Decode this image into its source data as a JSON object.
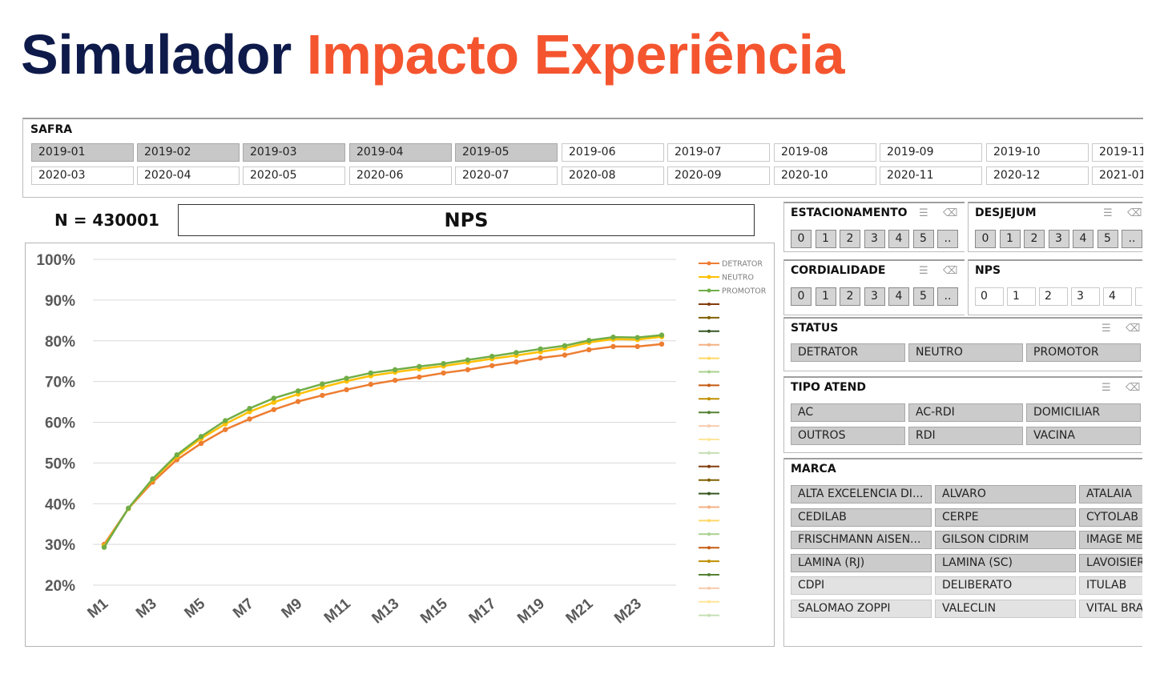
{
  "title": {
    "part1": "Simulador",
    "part2": "Impacto Experiência"
  },
  "safra": {
    "label": "SAFRA",
    "row1": [
      "2019-01",
      "2019-02",
      "2019-03",
      "2019-04",
      "2019-05",
      "2019-06",
      "2019-07",
      "2019-08",
      "2019-09",
      "2019-10",
      "2019-11"
    ],
    "row2": [
      "2020-03",
      "2020-04",
      "2020-05",
      "2020-06",
      "2020-07",
      "2020-08",
      "2020-09",
      "2020-10",
      "2020-11",
      "2020-12",
      "2021-01"
    ],
    "selected_row1_count": 5
  },
  "n_label": "N = 430001",
  "chart_title": "NPS",
  "panels": {
    "estacionamento": {
      "label": "ESTACIONAMENTO",
      "values": [
        "0",
        "1",
        "2",
        "3",
        "4",
        "5",
        ".."
      ]
    },
    "desjejum": {
      "label": "DESJEJUM",
      "values": [
        "0",
        "1",
        "2",
        "3",
        "4",
        "5",
        ".."
      ]
    },
    "cordialidade": {
      "label": "CORDIALIDADE",
      "values": [
        "0",
        "1",
        "2",
        "3",
        "4",
        "5",
        ".."
      ]
    },
    "nps": {
      "label": "NPS",
      "values": [
        "0",
        "1",
        "2",
        "3",
        "4"
      ]
    },
    "status": {
      "label": "STATUS",
      "values": [
        "DETRATOR",
        "NEUTRO",
        "PROMOTOR"
      ]
    },
    "tipo_atend": {
      "label": "TIPO ATEND",
      "values": [
        "AC",
        "AC-RDI",
        "DOMICILIAR",
        "OUTROS",
        "RDI",
        "VACINA"
      ]
    },
    "marca": {
      "label": "MARCA",
      "values": [
        "ALTA EXCELENCIA DI...",
        "ALVARO",
        "ATALAIA",
        "CEDILAB",
        "CERPE",
        "CYTOLAB",
        "FRISCHMANN AISEN...",
        "GILSON CIDRIM",
        "IMAGE MEI",
        "LAMINA (RJ)",
        "LAMINA (SC)",
        "LAVOISIER",
        "CDPI",
        "DELIBERATO",
        "ITULAB",
        "SALOMAO ZOPPI",
        "VALECLIN",
        "VITAL BRA"
      ],
      "light_from_row": 4
    }
  },
  "colors": {
    "detrator": "#ed7d31",
    "neutro": "#ffc000",
    "promotor": "#70ad47",
    "title_dark": "#0e1a4a",
    "title_accent": "#f4552f"
  },
  "chart_data": {
    "type": "line",
    "title": "NPS",
    "xlabel": "",
    "ylabel": "",
    "x": [
      "M1",
      "M2",
      "M3",
      "M4",
      "M5",
      "M6",
      "M7",
      "M8",
      "M9",
      "M10",
      "M11",
      "M12",
      "M13",
      "M14",
      "M15",
      "M16",
      "M17",
      "M18",
      "M19",
      "M20",
      "M21",
      "M22",
      "M23",
      "M24"
    ],
    "x_tick_labels": [
      "M1",
      "M3",
      "M5",
      "M7",
      "M9",
      "M11",
      "M13",
      "M15",
      "M17",
      "M19",
      "M21",
      "M23"
    ],
    "ylim": [
      20,
      100
    ],
    "y_ticks": [
      "20%",
      "30%",
      "40%",
      "50%",
      "60%",
      "70%",
      "80%",
      "90%",
      "100%"
    ],
    "series": [
      {
        "name": "DETRATOR",
        "color": "#ed7d31",
        "values": [
          30.0,
          38.8,
          45.3,
          50.8,
          54.8,
          58.2,
          60.8,
          63.1,
          65.1,
          66.6,
          68.0,
          69.3,
          70.3,
          71.1,
          72.1,
          72.9,
          73.9,
          74.8,
          75.8,
          76.5,
          77.8,
          78.6,
          78.6,
          79.2
        ]
      },
      {
        "name": "NEUTRO",
        "color": "#ffc000",
        "values": [
          29.6,
          38.8,
          45.9,
          51.6,
          56.0,
          59.6,
          62.6,
          64.9,
          66.9,
          68.6,
          70.1,
          71.4,
          72.3,
          73.1,
          73.8,
          74.7,
          75.6,
          76.4,
          77.3,
          78.2,
          79.6,
          80.4,
          80.3,
          81.0
        ]
      },
      {
        "name": "PROMOTOR",
        "color": "#70ad47",
        "values": [
          29.3,
          38.9,
          46.1,
          52.0,
          56.5,
          60.4,
          63.4,
          65.9,
          67.7,
          69.4,
          70.8,
          72.1,
          72.9,
          73.7,
          74.4,
          75.3,
          76.2,
          77.1,
          78.0,
          78.8,
          80.1,
          80.9,
          80.8,
          81.4
        ]
      }
    ],
    "legend": [
      "DETRATOR",
      "NEUTRO",
      "PROMOTOR"
    ],
    "legend_position": "right",
    "grid": true
  }
}
